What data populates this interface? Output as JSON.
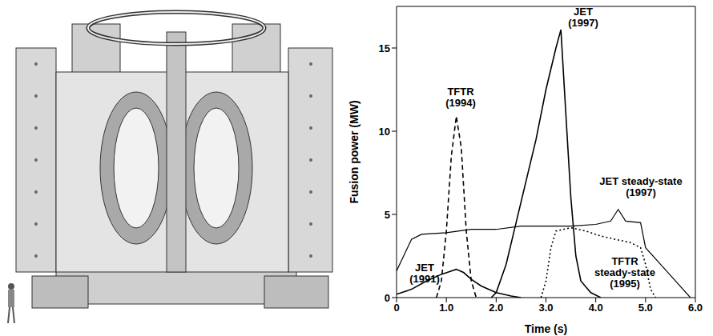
{
  "chart_data": {
    "type": "line",
    "x_label": "Time (s)",
    "y_label": "Fusion power (MW)",
    "xlim": [
      0,
      6
    ],
    "ylim": [
      0,
      17.5
    ],
    "xticks": [
      {
        "value": 0,
        "label": "0"
      },
      {
        "value": 1,
        "label": "1.0"
      },
      {
        "value": 2,
        "label": "2.0"
      },
      {
        "value": 3,
        "label": "3.0"
      },
      {
        "value": 4,
        "label": "4.0"
      },
      {
        "value": 5,
        "label": "5.0"
      },
      {
        "value": 6,
        "label": "6.0"
      }
    ],
    "yticks": [
      0,
      5,
      10,
      15
    ],
    "grid": false,
    "series": [
      {
        "name": "JET (1991)",
        "color": "#000000",
        "line_style": "solid",
        "x": [
          0,
          0.3,
          0.6,
          0.9,
          1.1,
          1.2,
          1.35,
          1.5,
          1.7,
          2.0,
          2.3,
          2.5
        ],
        "values": [
          0.2,
          0.5,
          1.0,
          1.4,
          1.6,
          1.7,
          1.5,
          1.1,
          0.7,
          0.3,
          0.1,
          0
        ]
      },
      {
        "name": "TFTR (1994)",
        "color": "#000000",
        "line_style": "dashed",
        "x": [
          0.8,
          0.9,
          1.0,
          1.1,
          1.2,
          1.3,
          1.4,
          1.5,
          1.6
        ],
        "values": [
          0,
          1,
          4,
          8.5,
          10.9,
          9,
          4,
          1,
          0
        ]
      },
      {
        "name": "JET (1997)",
        "color": "#000000",
        "line_style": "solid",
        "x": [
          1.9,
          2.0,
          2.2,
          2.4,
          2.6,
          2.8,
          3.0,
          3.2,
          3.3,
          3.4,
          3.5,
          3.6,
          3.7,
          3.9,
          4.1
        ],
        "values": [
          0,
          0.3,
          2,
          4.5,
          7,
          9.5,
          12.5,
          15,
          16.1,
          11,
          6,
          2.5,
          1,
          0.3,
          0
        ]
      },
      {
        "name": "JET steady-state (1997)",
        "color": "#000000",
        "line_style": "solid",
        "x": [
          0,
          0.3,
          0.5,
          1.0,
          1.5,
          2.0,
          2.5,
          3.0,
          3.5,
          4.0,
          4.3,
          4.45,
          4.6,
          4.9,
          5.0,
          5.3,
          5.6,
          5.9
        ],
        "values": [
          1.6,
          3.5,
          3.8,
          3.9,
          4.1,
          4.1,
          4.3,
          4.3,
          4.3,
          4.4,
          4.6,
          5.3,
          4.6,
          4.5,
          3.0,
          2,
          1,
          0
        ]
      },
      {
        "name": "TFTR steady-state (1995)",
        "color": "#000000",
        "line_style": "dotted",
        "x": [
          2.9,
          3.0,
          3.1,
          3.2,
          3.5,
          3.8,
          4.1,
          4.4,
          4.7,
          4.9,
          5.0,
          5.1,
          5.2
        ],
        "values": [
          0,
          1,
          3,
          4,
          4.2,
          4,
          3.7,
          3.5,
          3.3,
          3.0,
          2,
          0.5,
          0
        ]
      }
    ]
  }
}
